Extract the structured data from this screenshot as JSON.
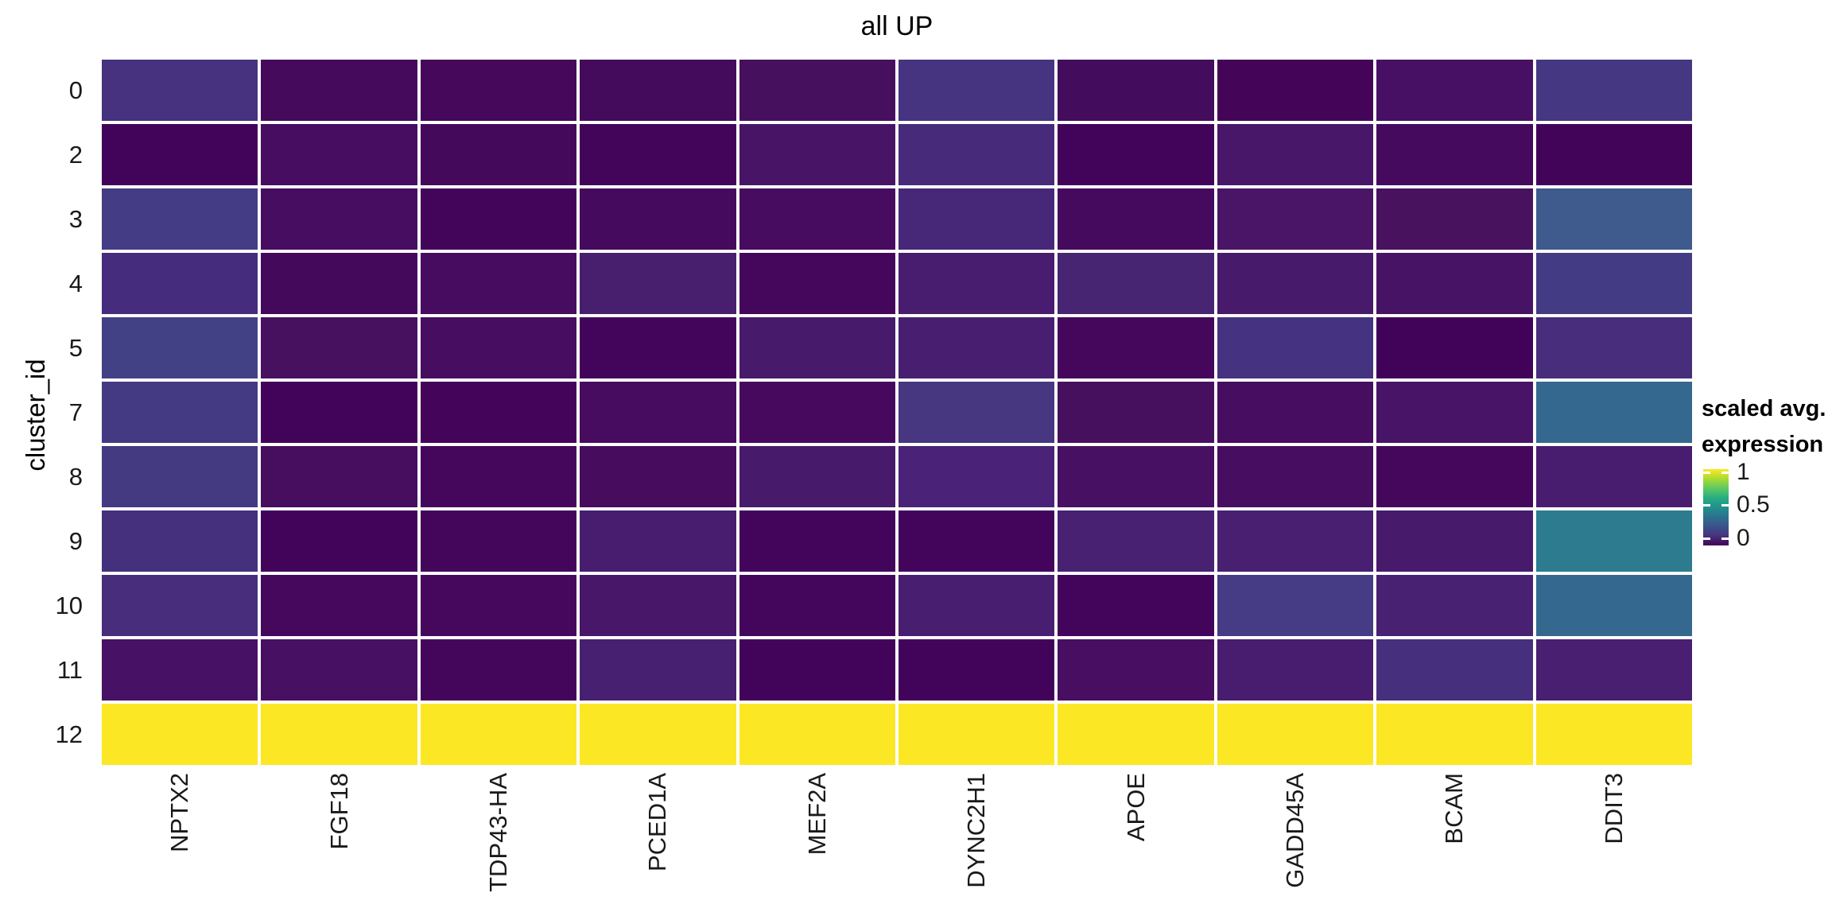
{
  "page": {
    "background": "#ffffff",
    "grid_line_color": "#ffffff"
  },
  "chart_data": {
    "type": "heatmap",
    "title": "all UP",
    "xlabel": "",
    "ylabel": "cluster_id",
    "rows": [
      "0",
      "2",
      "3",
      "4",
      "5",
      "7",
      "8",
      "9",
      "10",
      "11",
      "12"
    ],
    "columns": [
      "NPTX2",
      "FGF18",
      "TDP43-HA",
      "PCED1A",
      "MEF2A",
      "DYNC2H1",
      "APOE",
      "GADD45A",
      "BCAM",
      "DDIT3"
    ],
    "values": [
      [
        0.15,
        0.05,
        0.04,
        0.05,
        0.07,
        0.16,
        0.05,
        0.03,
        0.07,
        0.17
      ],
      [
        0.02,
        0.06,
        0.04,
        0.03,
        0.09,
        0.14,
        0.02,
        0.09,
        0.05,
        0.02
      ],
      [
        0.2,
        0.06,
        0.03,
        0.05,
        0.06,
        0.13,
        0.05,
        0.09,
        0.07,
        0.3
      ],
      [
        0.14,
        0.04,
        0.06,
        0.11,
        0.04,
        0.11,
        0.13,
        0.1,
        0.08,
        0.19
      ],
      [
        0.21,
        0.07,
        0.06,
        0.03,
        0.1,
        0.11,
        0.04,
        0.16,
        0.01,
        0.14
      ],
      [
        0.19,
        0.02,
        0.02,
        0.06,
        0.05,
        0.17,
        0.07,
        0.06,
        0.08,
        0.38
      ],
      [
        0.19,
        0.06,
        0.04,
        0.05,
        0.1,
        0.12,
        0.07,
        0.06,
        0.04,
        0.11
      ],
      [
        0.15,
        0.02,
        0.03,
        0.11,
        0.03,
        0.02,
        0.12,
        0.12,
        0.1,
        0.44
      ],
      [
        0.14,
        0.04,
        0.04,
        0.09,
        0.03,
        0.11,
        0.03,
        0.19,
        0.12,
        0.38
      ],
      [
        0.07,
        0.07,
        0.03,
        0.12,
        0.02,
        0.02,
        0.06,
        0.11,
        0.15,
        0.12
      ],
      [
        1.0,
        1.0,
        1.0,
        1.0,
        1.0,
        1.0,
        1.0,
        1.0,
        1.0,
        1.0
      ]
    ],
    "cell_colors": [
      [
        "#46327e",
        "#450a5c",
        "#45085a",
        "#440a5c",
        "#47105f",
        "#463480",
        "#440c5c",
        "#440559",
        "#471064",
        "#453781"
      ],
      [
        "#42045a",
        "#470d60",
        "#45095c",
        "#42055a",
        "#481566",
        "#472a7a",
        "#42045a",
        "#481769",
        "#45095e",
        "#420458"
      ],
      [
        "#443c85",
        "#470d60",
        "#43055a",
        "#45095e",
        "#470c60",
        "#472878",
        "#45095e",
        "#4a1566",
        "#48125f",
        "#3f5b8d"
      ],
      [
        "#452c7c",
        "#45095c",
        "#470c5f",
        "#481e6f",
        "#44075c",
        "#481c6e",
        "#472573",
        "#481a6c",
        "#471465",
        "#443b85"
      ],
      [
        "#424186",
        "#471160",
        "#470d60",
        "#43055c",
        "#481a6c",
        "#481e70",
        "#44075c",
        "#453382",
        "#410359",
        "#472d7c"
      ],
      [
        "#443a83",
        "#42035a",
        "#43045a",
        "#470c5f",
        "#46095e",
        "#473680",
        "#47105f",
        "#470d60",
        "#481467",
        "#35688e"
      ],
      [
        "#433a82",
        "#470d5f",
        "#45075c",
        "#470c5e",
        "#481a6b",
        "#4a2277",
        "#471063",
        "#470d60",
        "#44075c",
        "#481d6f"
      ],
      [
        "#45307e",
        "#42045a",
        "#44065b",
        "#481c6e",
        "#43055b",
        "#43045b",
        "#482173",
        "#481f71",
        "#481a6c",
        "#2d7b8e"
      ],
      [
        "#472d7b",
        "#45085d",
        "#46085d",
        "#481769",
        "#44065c",
        "#481e70",
        "#43055b",
        "#453c85",
        "#482173",
        "#34688e"
      ],
      [
        "#471165",
        "#471063",
        "#44065b",
        "#482071",
        "#42045a",
        "#42035a",
        "#470e61",
        "#481d6f",
        "#462f7d",
        "#481f71"
      ],
      [
        "#fce724",
        "#fce724",
        "#fce724",
        "#fce724",
        "#fce724",
        "#fce724",
        "#fce724",
        "#fce724",
        "#fce724",
        "#fce724"
      ]
    ],
    "legend": {
      "title_line1": "scaled avg.",
      "title_line2": "expression",
      "tick_labels": [
        "1",
        "0.5",
        "0"
      ],
      "tick_positions": [
        0.04,
        0.47,
        0.91
      ],
      "gradient_top_to_bottom": [
        "#fde725",
        "#aadc32",
        "#5ec962",
        "#27ad81",
        "#21918c",
        "#2c718e",
        "#3b528b",
        "#46327e",
        "#440256"
      ]
    },
    "layout": {
      "grid": "off",
      "legend_position": "right",
      "x_tick_rotation": 90
    }
  }
}
